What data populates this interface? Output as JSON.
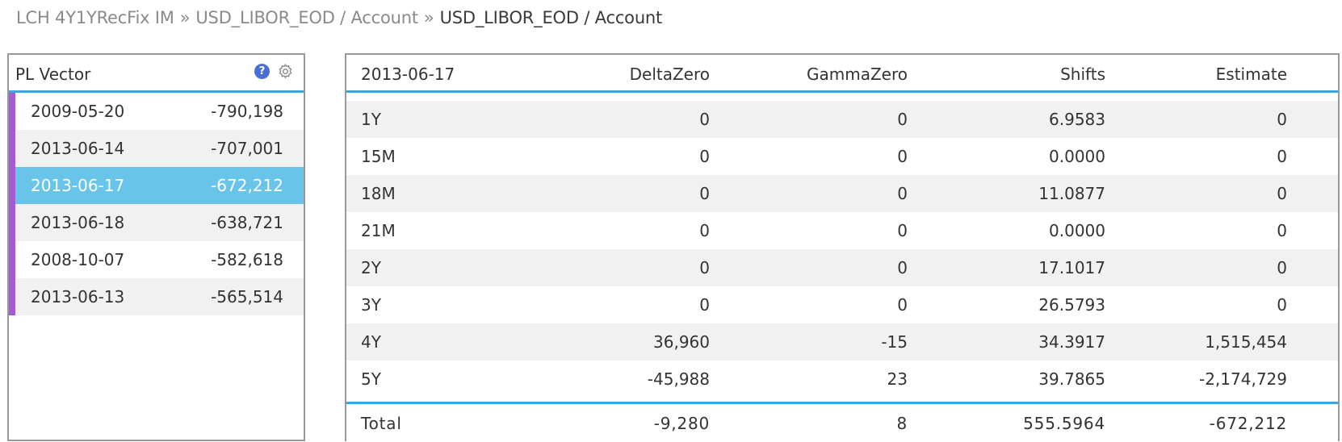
{
  "breadcrumb": {
    "items": [
      "LCH 4Y1YRecFix IM",
      "USD_LIBOR_EOD / Account"
    ],
    "current": "USD_LIBOR_EOD / Account",
    "separator": "»"
  },
  "pl_vector": {
    "title": "PL Vector",
    "help_icon": "?",
    "rows": [
      {
        "date": "2009-05-20",
        "value": "-790,198"
      },
      {
        "date": "2013-06-14",
        "value": "-707,001"
      },
      {
        "date": "2013-06-17",
        "value": "-672,212",
        "selected": true
      },
      {
        "date": "2013-06-18",
        "value": "-638,721"
      },
      {
        "date": "2008-10-07",
        "value": "-582,618"
      },
      {
        "date": "2013-06-13",
        "value": "-565,514"
      }
    ]
  },
  "detail": {
    "headers": [
      "2013-06-17",
      "DeltaZero",
      "GammaZero",
      "Shifts",
      "Estimate"
    ],
    "rows": [
      [
        "1Y",
        "0",
        "0",
        "6.9583",
        "0"
      ],
      [
        "15M",
        "0",
        "0",
        "0.0000",
        "0"
      ],
      [
        "18M",
        "0",
        "0",
        "11.0877",
        "0"
      ],
      [
        "21M",
        "0",
        "0",
        "0.0000",
        "0"
      ],
      [
        "2Y",
        "0",
        "0",
        "17.1017",
        "0"
      ],
      [
        "3Y",
        "0",
        "0",
        "26.5793",
        "0"
      ],
      [
        "4Y",
        "36,960",
        "-15",
        "34.3917",
        "1,515,454"
      ],
      [
        "5Y",
        "-45,988",
        "23",
        "39.7865",
        "-2,174,729"
      ]
    ],
    "total": [
      "Total",
      "-9,280",
      "8",
      "555.5964",
      "-672,212"
    ]
  },
  "colors": {
    "accent_line": "#3aa6dc",
    "selected_row": "#69c4ea",
    "row_marker": "#a55bd6",
    "help_icon": "#4a6fd6"
  },
  "icons": [
    "help-icon",
    "gear-icon"
  ]
}
